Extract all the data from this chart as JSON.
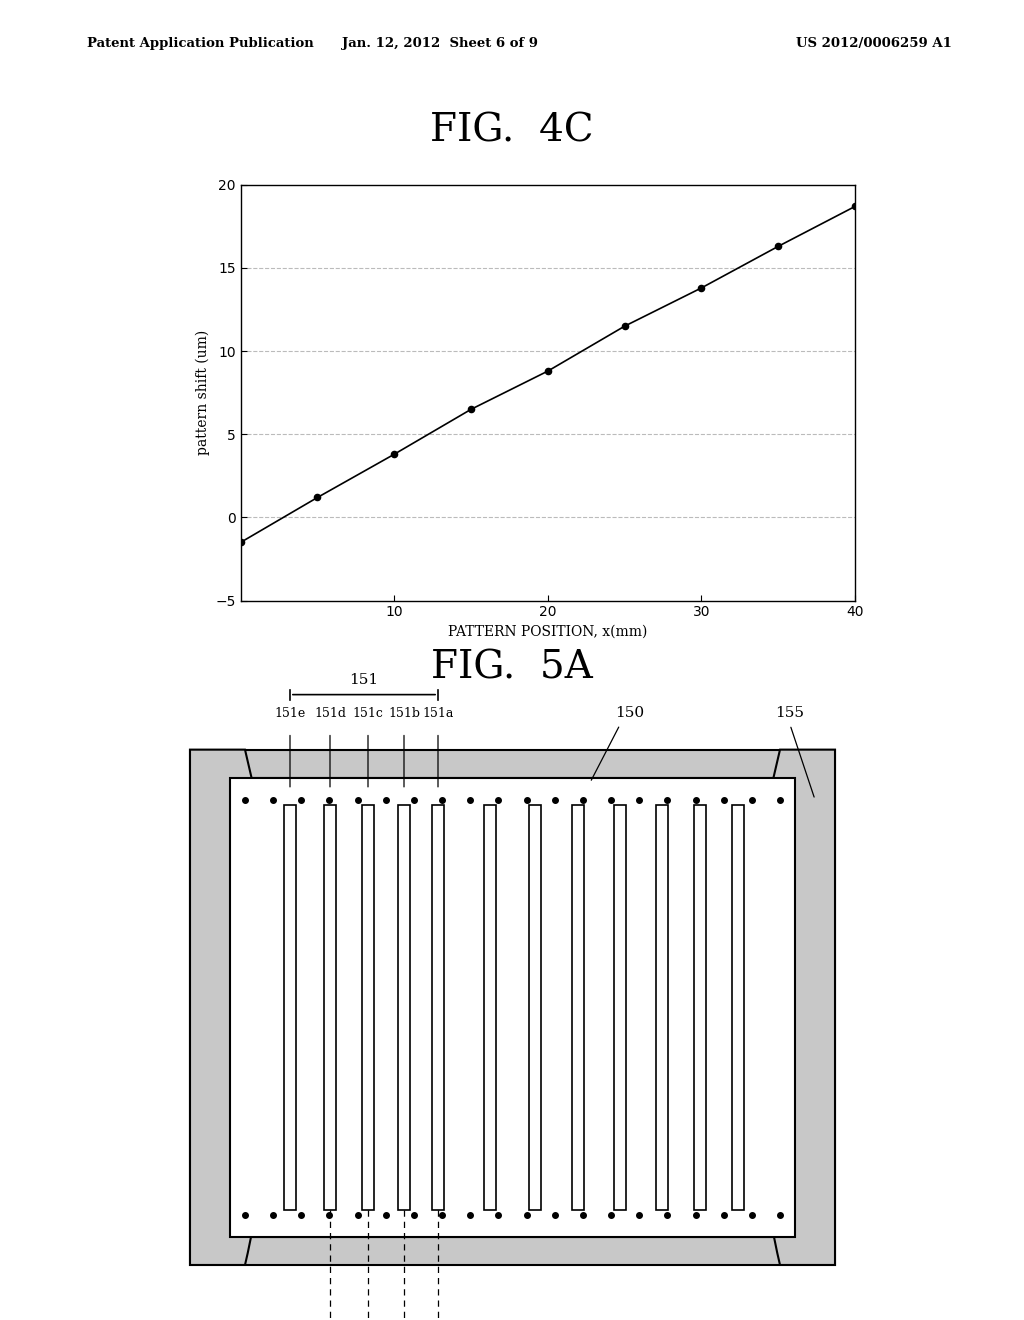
{
  "header_left": "Patent Application Publication",
  "header_mid": "Jan. 12, 2012  Sheet 6 of 9",
  "header_right": "US 2012/0006259 A1",
  "fig4c_title": "FIG.  4C",
  "fig5a_title": "FIG.  5A",
  "graph_xlabel": "PATTERN POSITION, x(mm)",
  "graph_ylabel": "pattern shift (um)",
  "graph_xlim": [
    0,
    40
  ],
  "graph_ylim": [
    -5,
    20
  ],
  "graph_xticks": [
    10,
    20,
    30,
    40
  ],
  "graph_yticks": [
    -5,
    0,
    5,
    10,
    15,
    20
  ],
  "graph_x_data": [
    0,
    5,
    10,
    15,
    20,
    25,
    30,
    35,
    40
  ],
  "graph_y_data": [
    -1.5,
    1.2,
    3.8,
    6.5,
    8.8,
    11.5,
    13.8,
    16.3,
    18.7
  ],
  "bg_color": "#ffffff",
  "line_color": "#000000",
  "grid_color": "#aaaaaa"
}
